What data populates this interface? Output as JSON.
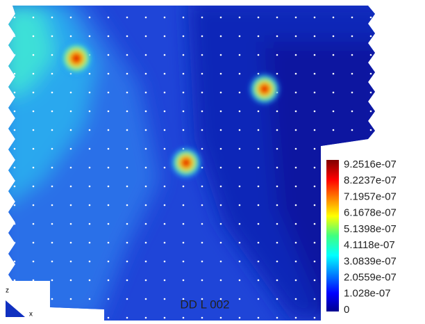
{
  "colorbar": {
    "labels": [
      "9.2516e-07",
      "8.2237e-07",
      "7.1957e-07",
      "6.1678e-07",
      "5.1398e-07",
      "4.1118e-07",
      "3.0839e-07",
      "2.0559e-07",
      "1.028e-07",
      "0"
    ]
  },
  "caption": "DD L 002",
  "triad": {
    "vertical": "z",
    "horizontal": "x"
  }
}
